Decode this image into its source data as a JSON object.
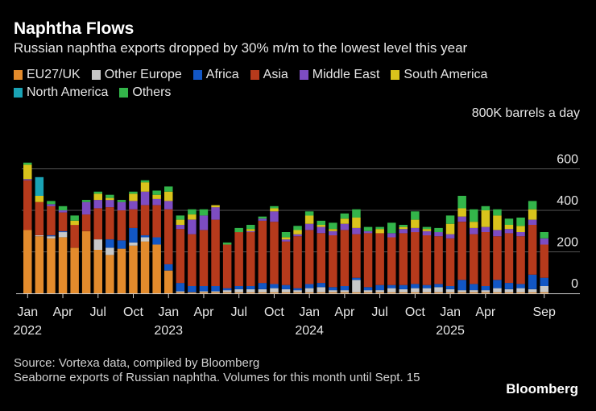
{
  "title": "Naphtha Flows",
  "subtitle": "Russian naphtha exports dropped by 30% m/m to the lowest level this year",
  "legend": [
    {
      "name": "EU27/UK",
      "color": "#e38b2c"
    },
    {
      "name": "Other Europe",
      "color": "#c8c8c8"
    },
    {
      "name": "Africa",
      "color": "#1256c4"
    },
    {
      "name": "Asia",
      "color": "#b63a1c"
    },
    {
      "name": "Middle East",
      "color": "#7d4cc2"
    },
    {
      "name": "South America",
      "color": "#d9c31c"
    },
    {
      "name": "North America",
      "color": "#1aa3b5"
    },
    {
      "name": "Others",
      "color": "#33b54a"
    }
  ],
  "unit_label": "800K barrels a day",
  "source": "Source: Vortexa data, compiled by Bloomberg",
  "note": "Seaborne exports of Russian naphtha. Volumes for this month until Sept. 15",
  "brand": "Bloomberg",
  "chart_data": {
    "type": "bar",
    "stacked": true,
    "title": "Naphtha Flows",
    "ylabel": "Thousand barrels a day",
    "ylim": [
      0,
      800
    ],
    "yticks": [
      0,
      200,
      400,
      600
    ],
    "categories": [
      "Jan 2022",
      "Feb 2022",
      "Mar 2022",
      "Apr 2022",
      "May 2022",
      "Jun 2022",
      "Jul 2022",
      "Aug 2022",
      "Sep 2022",
      "Oct 2022",
      "Nov 2022",
      "Dec 2022",
      "Jan 2023",
      "Feb 2023",
      "Mar 2023",
      "Apr 2023",
      "May 2023",
      "Jun 2023",
      "Jul 2023",
      "Aug 2023",
      "Sep 2023",
      "Oct 2023",
      "Nov 2023",
      "Dec 2023",
      "Jan 2024",
      "Feb 2024",
      "Mar 2024",
      "Apr 2024",
      "May 2024",
      "Jun 2024",
      "Jul 2024",
      "Aug 2024",
      "Sep 2024",
      "Oct 2024",
      "Nov 2024",
      "Dec 2024",
      "Jan 2025",
      "Feb 2025",
      "Mar 2025",
      "Apr 2025",
      "May 2025",
      "Jun 2025",
      "Jul 2025",
      "Aug 2025",
      "Sep 2025"
    ],
    "xtick_labels": [
      {
        "index": 0,
        "month": "Jan",
        "year": "2022"
      },
      {
        "index": 3,
        "month": "Apr",
        "year": ""
      },
      {
        "index": 6,
        "month": "Jul",
        "year": ""
      },
      {
        "index": 9,
        "month": "Oct",
        "year": ""
      },
      {
        "index": 12,
        "month": "Jan",
        "year": "2023"
      },
      {
        "index": 15,
        "month": "Apr",
        "year": ""
      },
      {
        "index": 18,
        "month": "Jul",
        "year": ""
      },
      {
        "index": 21,
        "month": "Oct",
        "year": ""
      },
      {
        "index": 24,
        "month": "Jan",
        "year": "2024"
      },
      {
        "index": 27,
        "month": "Apr",
        "year": ""
      },
      {
        "index": 30,
        "month": "Jul",
        "year": ""
      },
      {
        "index": 33,
        "month": "Oct",
        "year": ""
      },
      {
        "index": 36,
        "month": "Jan",
        "year": "2025"
      },
      {
        "index": 39,
        "month": "Apr",
        "year": ""
      },
      {
        "index": 44,
        "month": "Sep",
        "year": ""
      }
    ],
    "series": [
      {
        "name": "EU27/UK",
        "values": [
          305,
          275,
          265,
          270,
          220,
          300,
          210,
          185,
          215,
          230,
          250,
          235,
          110,
          5,
          5,
          5,
          5,
          5,
          5,
          5,
          5,
          5,
          5,
          5,
          5,
          5,
          5,
          5,
          5,
          5,
          5,
          5,
          5,
          5,
          5,
          5,
          5,
          5,
          5,
          5,
          5,
          5,
          5,
          5,
          5
        ]
      },
      {
        "name": "Other Europe",
        "values": [
          0,
          5,
          10,
          25,
          0,
          0,
          50,
          35,
          0,
          15,
          20,
          0,
          0,
          5,
          0,
          5,
          5,
          10,
          15,
          15,
          15,
          20,
          15,
          10,
          20,
          25,
          10,
          10,
          60,
          10,
          10,
          20,
          15,
          20,
          20,
          25,
          15,
          10,
          10,
          10,
          20,
          15,
          20,
          15,
          30
        ]
      },
      {
        "name": "Africa",
        "values": [
          0,
          0,
          5,
          5,
          0,
          0,
          0,
          40,
          40,
          70,
          10,
          35,
          30,
          40,
          30,
          25,
          25,
          10,
          15,
          15,
          30,
          20,
          20,
          10,
          20,
          20,
          15,
          20,
          10,
          15,
          25,
          15,
          20,
          20,
          15,
          15,
          15,
          50,
          30,
          20,
          40,
          30,
          20,
          70,
          40
        ]
      },
      {
        "name": "Asia",
        "values": [
          240,
          160,
          140,
          90,
          110,
          80,
          150,
          155,
          145,
          90,
          145,
          155,
          265,
          260,
          250,
          270,
          320,
          210,
          260,
          260,
          300,
          300,
          210,
          250,
          260,
          240,
          250,
          270,
          210,
          260,
          250,
          230,
          250,
          250,
          240,
          230,
          230,
          280,
          240,
          260,
          210,
          240,
          230,
          240,
          160
        ]
      },
      {
        "name": "Middle East",
        "values": [
          5,
          0,
          10,
          10,
          0,
          60,
          40,
          35,
          40,
          40,
          65,
          30,
          40,
          20,
          70,
          70,
          60,
          0,
          0,
          5,
          10,
          50,
          10,
          10,
          30,
          30,
          20,
          30,
          30,
          10,
          0,
          20,
          20,
          20,
          20,
          20,
          20,
          25,
          30,
          25,
          30,
          20,
          20,
          25,
          30
        ]
      },
      {
        "name": "South America",
        "values": [
          70,
          30,
          0,
          0,
          20,
          0,
          30,
          10,
          0,
          35,
          45,
          20,
          45,
          25,
          25,
          0,
          10,
          0,
          0,
          10,
          0,
          15,
          10,
          20,
          40,
          10,
          10,
          25,
          50,
          0,
          20,
          0,
          10,
          40,
          10,
          0,
          50,
          40,
          30,
          80,
          70,
          20,
          30,
          50,
          0
        ]
      },
      {
        "name": "North America",
        "values": [
          0,
          90,
          0,
          0,
          0,
          0,
          0,
          0,
          0,
          0,
          0,
          0,
          0,
          0,
          0,
          0,
          0,
          0,
          0,
          0,
          0,
          0,
          0,
          0,
          0,
          0,
          0,
          0,
          0,
          0,
          0,
          0,
          0,
          0,
          0,
          0,
          0,
          0,
          0,
          0,
          0,
          0,
          0,
          0,
          0
        ]
      },
      {
        "name": "Others",
        "values": [
          10,
          0,
          15,
          20,
          25,
          10,
          10,
          15,
          10,
          10,
          10,
          20,
          25,
          20,
          25,
          30,
          0,
          10,
          20,
          20,
          10,
          10,
          25,
          20,
          20,
          20,
          30,
          25,
          40,
          20,
          10,
          50,
          10,
          40,
          10,
          20,
          40,
          60,
          60,
          20,
          30,
          30,
          40,
          40,
          30
        ]
      }
    ]
  }
}
